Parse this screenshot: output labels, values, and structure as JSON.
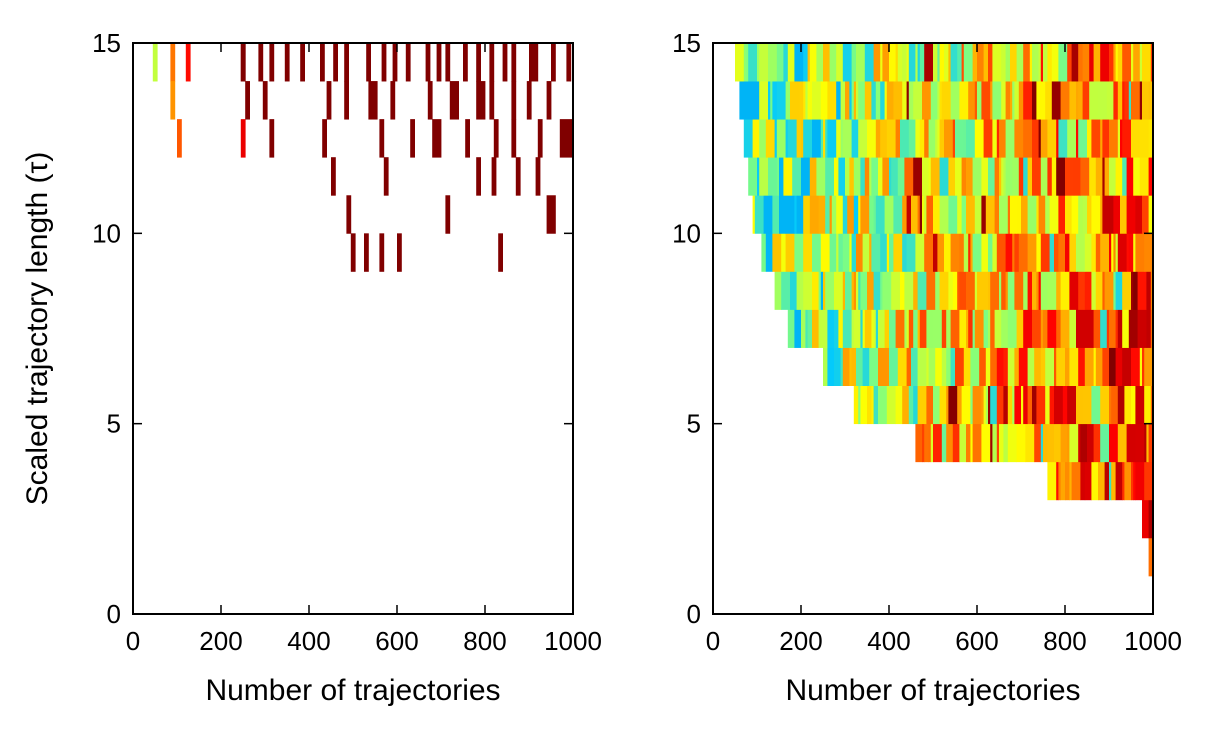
{
  "chart_data": [
    {
      "type": "heatmap",
      "xlabel": "Number of trajectories",
      "ylabel": "Scaled trajectory length (τ)",
      "xlim": [
        0,
        1000
      ],
      "ylim": [
        0,
        15
      ],
      "xticks": [
        0,
        200,
        400,
        600,
        800,
        1000
      ],
      "yticks": [
        0,
        5,
        10,
        15
      ],
      "xtick_labels": [
        "0",
        "200",
        "400",
        "600",
        "800",
        "1000"
      ],
      "ytick_labels": [
        "0",
        "5",
        "10",
        "15"
      ],
      "grid": false,
      "colormap": [
        "#0000a0",
        "#00c8ff",
        "#80ff80",
        "#ffff00",
        "#ff8000",
        "#ff0000",
        "#800000"
      ],
      "cells": [
        [
          45,
          14,
          10,
          1,
          0.42
        ],
        [
          85,
          14,
          10,
          1,
          0.68
        ],
        [
          120,
          14,
          10,
          1,
          0.82
        ],
        [
          85,
          13,
          10,
          1,
          0.64
        ],
        [
          100,
          12,
          10,
          1,
          0.72
        ],
        [
          245,
          12,
          10,
          1,
          0.86
        ],
        [
          245,
          14,
          10,
          1,
          0.98
        ],
        [
          245,
          14,
          10,
          1,
          1.0
        ],
        [
          285,
          14,
          10,
          1,
          1.0
        ],
        [
          310,
          14,
          10,
          1,
          1.0
        ],
        [
          345,
          14,
          10,
          1,
          1.0
        ],
        [
          380,
          14,
          10,
          1,
          1.0
        ],
        [
          425,
          14,
          10,
          1,
          1.0
        ],
        [
          455,
          14,
          10,
          1,
          1.0
        ],
        [
          480,
          14,
          10,
          1,
          1.0
        ],
        [
          530,
          14,
          10,
          1,
          1.0
        ],
        [
          565,
          14,
          10,
          1,
          1.0
        ],
        [
          590,
          14,
          10,
          1,
          1.0
        ],
        [
          620,
          14,
          10,
          1,
          1.0
        ],
        [
          665,
          14,
          10,
          1,
          1.0
        ],
        [
          690,
          14,
          10,
          1,
          1.0
        ],
        [
          710,
          14,
          10,
          1,
          1.0
        ],
        [
          750,
          14,
          10,
          1,
          1.0
        ],
        [
          780,
          14,
          10,
          1,
          1.0
        ],
        [
          810,
          14,
          10,
          1,
          1.0
        ],
        [
          840,
          14,
          10,
          1,
          1.0
        ],
        [
          860,
          14,
          10,
          1,
          1.0
        ],
        [
          900,
          14,
          20,
          1,
          1.0
        ],
        [
          950,
          14,
          10,
          1,
          1.0
        ],
        [
          985,
          14,
          10,
          1,
          1.0
        ],
        [
          255,
          13,
          10,
          1,
          1.0
        ],
        [
          295,
          13,
          10,
          1,
          1.0
        ],
        [
          440,
          13,
          10,
          1,
          1.0
        ],
        [
          480,
          13,
          10,
          1,
          1.0
        ],
        [
          535,
          13,
          20,
          1,
          1.0
        ],
        [
          585,
          13,
          10,
          1,
          1.0
        ],
        [
          670,
          13,
          10,
          1,
          1.0
        ],
        [
          720,
          13,
          20,
          1,
          1.0
        ],
        [
          780,
          13,
          20,
          1,
          1.0
        ],
        [
          810,
          13,
          10,
          1,
          1.0
        ],
        [
          860,
          13,
          10,
          1,
          1.0
        ],
        [
          895,
          13,
          10,
          1,
          1.0
        ],
        [
          940,
          13,
          10,
          1,
          1.0
        ],
        [
          310,
          12,
          10,
          1,
          1.0
        ],
        [
          430,
          12,
          10,
          1,
          1.0
        ],
        [
          560,
          12,
          10,
          1,
          1.0
        ],
        [
          630,
          12,
          10,
          1,
          1.0
        ],
        [
          680,
          12,
          20,
          1,
          1.0
        ],
        [
          755,
          12,
          10,
          1,
          1.0
        ],
        [
          820,
          12,
          10,
          1,
          1.0
        ],
        [
          860,
          12,
          10,
          1,
          1.0
        ],
        [
          920,
          12,
          10,
          1,
          1.0
        ],
        [
          970,
          12,
          30,
          1,
          1.0
        ],
        [
          450,
          11,
          10,
          1,
          1.0
        ],
        [
          570,
          11,
          10,
          1,
          1.0
        ],
        [
          780,
          11,
          10,
          1,
          1.0
        ],
        [
          815,
          11,
          10,
          1,
          1.0
        ],
        [
          870,
          11,
          10,
          1,
          1.0
        ],
        [
          915,
          11,
          10,
          1,
          1.0
        ],
        [
          485,
          10,
          10,
          1,
          1.0
        ],
        [
          710,
          10,
          10,
          1,
          1.0
        ],
        [
          940,
          10,
          20,
          1,
          1.0
        ],
        [
          495,
          9,
          10,
          1,
          1.0
        ],
        [
          525,
          9,
          10,
          1,
          1.0
        ],
        [
          560,
          9,
          10,
          1,
          1.0
        ],
        [
          600,
          9,
          10,
          1,
          1.0
        ],
        [
          830,
          9,
          10,
          1,
          1.0
        ]
      ]
    },
    {
      "type": "heatmap",
      "xlabel": "Number of trajectories",
      "ylabel": "",
      "xlim": [
        0,
        1000
      ],
      "ylim": [
        0,
        15
      ],
      "xticks": [
        0,
        200,
        400,
        600,
        800,
        1000
      ],
      "yticks": [
        0,
        5,
        10,
        15
      ],
      "xtick_labels": [
        "0",
        "200",
        "400",
        "600",
        "800",
        "1000"
      ],
      "ytick_labels": [
        "0",
        "5",
        "10",
        "15"
      ],
      "grid": false,
      "colormap": [
        "#0000a0",
        "#00c8ff",
        "#80ff80",
        "#ffff00",
        "#ff8000",
        "#ff0000",
        "#800000"
      ],
      "start_by_row": [
        1000,
        990,
        975,
        760,
        460,
        320,
        250,
        170,
        140,
        110,
        90,
        80,
        70,
        60,
        50,
        25
      ],
      "cells": []
    }
  ]
}
